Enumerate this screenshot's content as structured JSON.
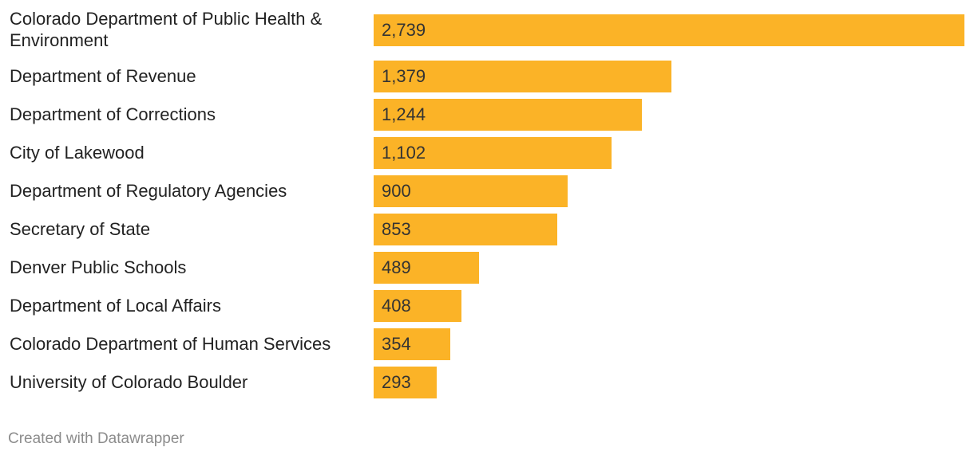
{
  "chart_data": {
    "type": "bar",
    "orientation": "horizontal",
    "categories": [
      "Colorado Department of Public Health & Environment",
      "Department of Revenue",
      "Department of Corrections",
      "City of Lakewood",
      "Department of Regulatory Agencies",
      "Secretary of State",
      "Denver Public Schools",
      "Department of Local Affairs",
      "Colorado Department of Human Services",
      "University of Colorado Boulder"
    ],
    "values": [
      2739,
      1379,
      1244,
      1102,
      900,
      853,
      489,
      408,
      354,
      293
    ],
    "value_labels": [
      "2,739",
      "1,379",
      "1,244",
      "1,102",
      "900",
      "853",
      "489",
      "408",
      "354",
      "293"
    ],
    "xlim": [
      0,
      2739
    ],
    "bar_color": "#fbb327",
    "title": "",
    "xlabel": "",
    "ylabel": ""
  },
  "footer": {
    "credit": "Created with Datawrapper"
  }
}
